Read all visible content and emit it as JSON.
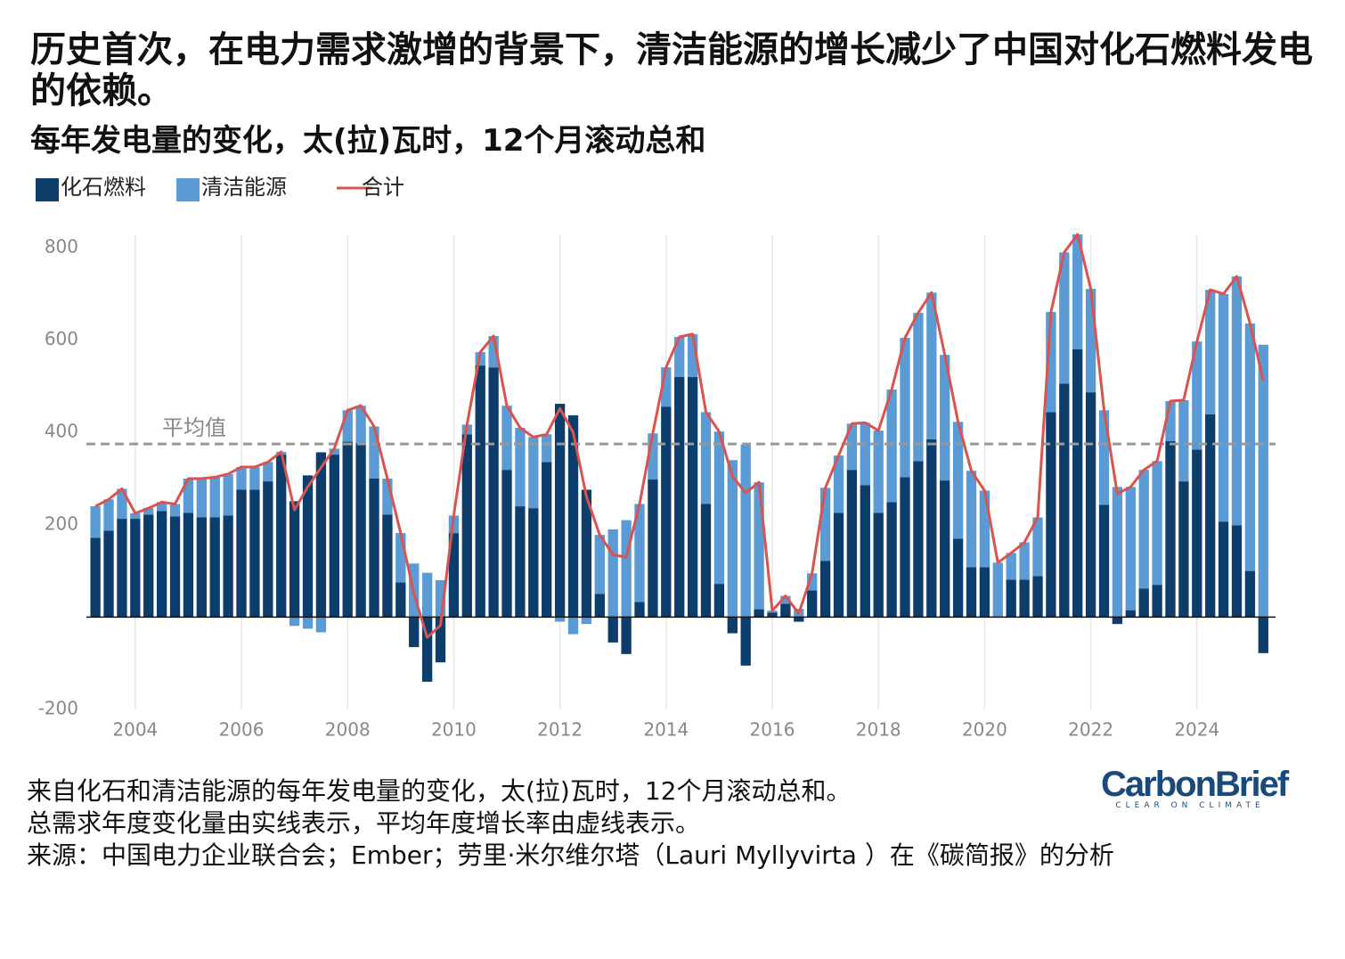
{
  "chart_data": {
    "type": "bar",
    "stacked": true,
    "title": "历史首次，在电力需求激增的背景下，清洁能源的增长减少了中国对化石燃料发电的依赖。",
    "subtitle": "每年发电量的变化，太(拉)瓦时，12个月滚动总和",
    "x": [
      2003.25,
      2003.5,
      2003.75,
      2004,
      2004.25,
      2004.5,
      2004.75,
      2005,
      2005.25,
      2005.5,
      2005.75,
      2006,
      2006.25,
      2006.5,
      2006.75,
      2007,
      2007.25,
      2007.5,
      2007.75,
      2008,
      2008.25,
      2008.5,
      2008.75,
      2009,
      2009.25,
      2009.5,
      2009.75,
      2010,
      2010.25,
      2010.5,
      2010.75,
      2011,
      2011.25,
      2011.5,
      2011.75,
      2012,
      2012.25,
      2012.5,
      2012.75,
      2013,
      2013.25,
      2013.5,
      2013.75,
      2014,
      2014.25,
      2014.5,
      2014.75,
      2015,
      2015.25,
      2015.5,
      2015.75,
      2016,
      2016.25,
      2016.5,
      2016.75,
      2017,
      2017.25,
      2017.5,
      2017.75,
      2018,
      2018.25,
      2018.5,
      2018.75,
      2019,
      2019.25,
      2019.5,
      2019.75,
      2020,
      2020.25,
      2020.5,
      2020.75,
      2021,
      2021.25,
      2021.5,
      2021.75,
      2022,
      2022.25,
      2022.5,
      2022.75,
      2023,
      2023.25,
      2023.5,
      2023.75,
      2024,
      2024.25,
      2024.5,
      2024.75,
      2025,
      2025.25
    ],
    "series": [
      {
        "name": "化石燃料",
        "color": "#0d3d6b",
        "values": [
          172,
          187,
          213,
          213,
          222,
          230,
          218,
          226,
          216,
          216,
          220,
          276,
          276,
          294,
          352,
          251,
          307,
          357,
          352,
          380,
          377,
          300,
          222,
          75,
          -65,
          -140,
          -98,
          182,
          396,
          545,
          541,
          319,
          240,
          236,
          336,
          462,
          437,
          276,
          50,
          -55,
          -80,
          33,
          298,
          456,
          520,
          520,
          245,
          72,
          -35,
          -105,
          17,
          10,
          29,
          -10,
          58,
          122,
          226,
          319,
          286,
          226,
          249,
          303,
          338,
          385,
          296,
          170,
          108,
          108,
          0,
          81,
          81,
          89,
          444,
          506,
          580,
          487,
          243,
          -15,
          15,
          62,
          70,
          381,
          294,
          363,
          439,
          207,
          199,
          100,
          -78
        ]
      },
      {
        "name": "清洁能源",
        "color": "#5b9bd5",
        "values": [
          68,
          68,
          65,
          12,
          14,
          19,
          27,
          74,
          84,
          87,
          90,
          49,
          49,
          42,
          6,
          -19,
          -25,
          -33,
          13,
          68,
          81,
          113,
          78,
          107,
          116,
          96,
          80,
          38,
          21,
          29,
          68,
          139,
          170,
          154,
          60,
          -10,
          -37,
          -15,
          128,
          190,
          210,
          212,
          100,
          85,
          87,
          93,
          199,
          330,
          340,
          374,
          275,
          4,
          17,
          18,
          37,
          158,
          124,
          100,
          135,
          178,
          244,
          302,
          321,
          318,
          272,
          253,
          209,
          166,
          118,
          58,
          81,
          127,
          217,
          284,
          249,
          224,
          205,
          282,
          267,
          257,
          268,
          87,
          176,
          234,
          270,
          493,
          539,
          536,
          590
        ]
      },
      {
        "name": "合计",
        "color": "#d9534f",
        "type": "line",
        "values": [
          240,
          255,
          278,
          225,
          236,
          249,
          245,
          300,
          300,
          303,
          310,
          325,
          325,
          336,
          358,
          232,
          282,
          324,
          365,
          448,
          458,
          413,
          300,
          182,
          51,
          -44,
          -18,
          220,
          417,
          574,
          609,
          458,
          410,
          390,
          396,
          452,
          400,
          261,
          178,
          135,
          130,
          245,
          398,
          541,
          607,
          613,
          444,
          402,
          305,
          269,
          292,
          14,
          46,
          8,
          95,
          280,
          350,
          419,
          421,
          404,
          493,
          605,
          659,
          703,
          568,
          423,
          317,
          274,
          118,
          139,
          162,
          216,
          661,
          790,
          829,
          711,
          448,
          267,
          282,
          319,
          338,
          468,
          470,
          597,
          709,
          700,
          738,
          636,
          512
        ]
      }
    ],
    "average": {
      "value": 375,
      "label": "平均值"
    },
    "xlim": [
      2003.08,
      2025.48
    ],
    "xticks": [
      2004,
      2006,
      2008,
      2010,
      2012,
      2014,
      2016,
      2018,
      2020,
      2022,
      2024
    ],
    "ylim": [
      -200,
      800
    ],
    "yticks": [
      -200,
      200,
      400,
      600,
      800
    ],
    "grid": true,
    "notes": [
      "来自化石和清洁能源的每年发电量的变化，太(拉)瓦时，12个月滚动总和。",
      "总需求年度变化量由实线表示，平均年度增长率由虚线表示。",
      "来源：中国电力企业联合会；Ember；劳里·米尔维尔塔（Lauri Myllyvirta ）在《碳简报》的分析"
    ],
    "logo": {
      "name": "CarbonBrief",
      "tagline": "CLEAR ON CLIMATE"
    }
  }
}
